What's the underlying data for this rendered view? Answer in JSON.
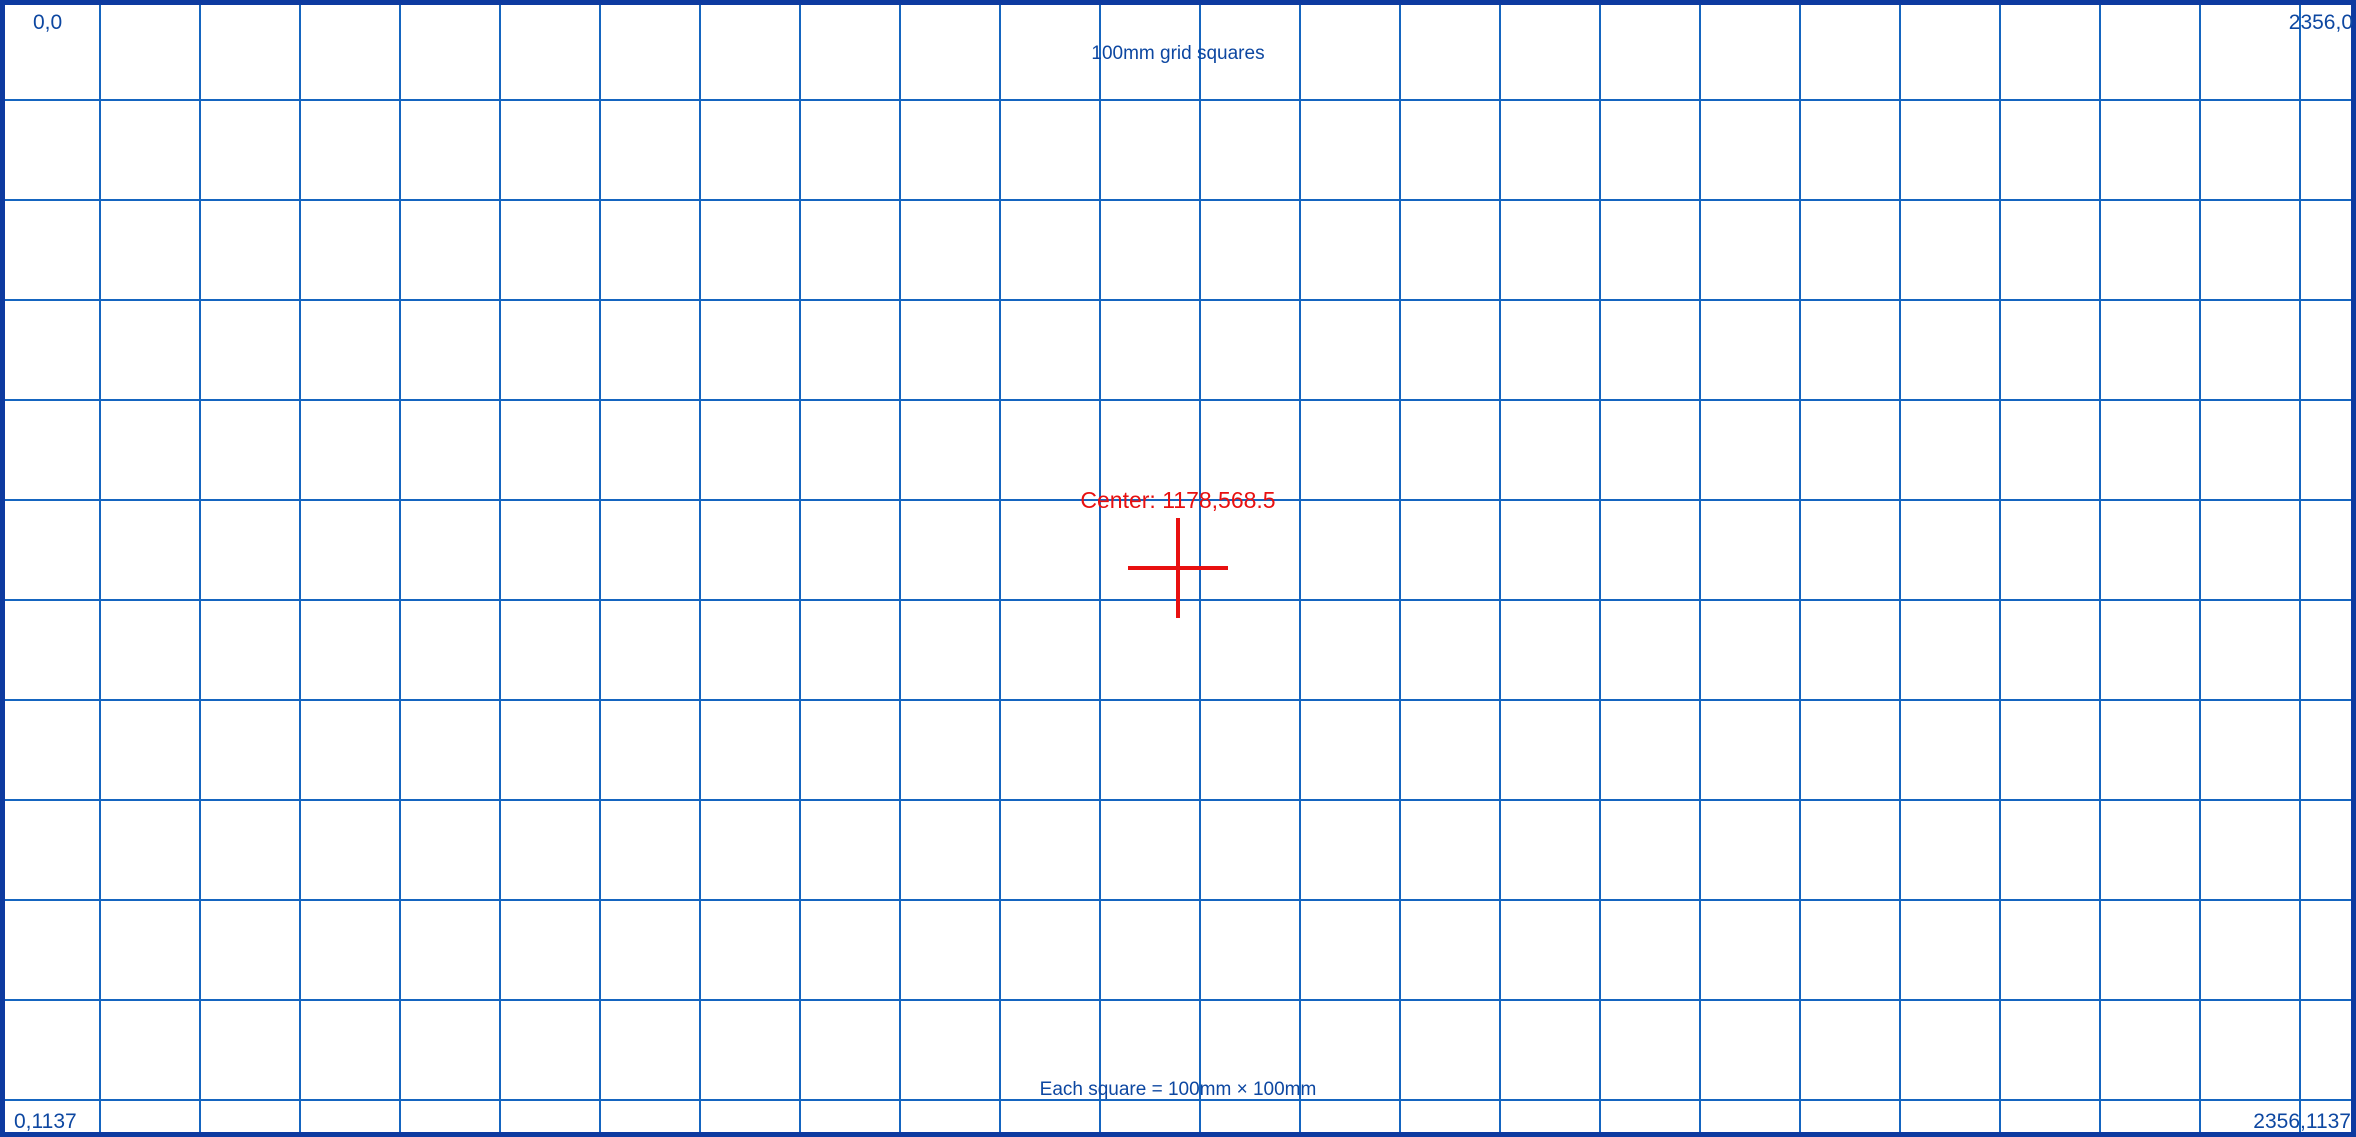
{
  "colors": {
    "grid": "#1565c0",
    "border": "#0d3aa0",
    "label": "#0d47a1",
    "center": "#e81010",
    "background": "#ffffff"
  },
  "corners": {
    "top_left": "0,0",
    "top_right": "2356,0",
    "bottom_left": "0,1137",
    "bottom_right": "2356,1137"
  },
  "notes": {
    "top": "100mm grid squares",
    "bottom": "Each square = 100mm × 100mm"
  },
  "center": {
    "label": "Center: 1178,568.5",
    "icon": "crosshair-icon"
  }
}
